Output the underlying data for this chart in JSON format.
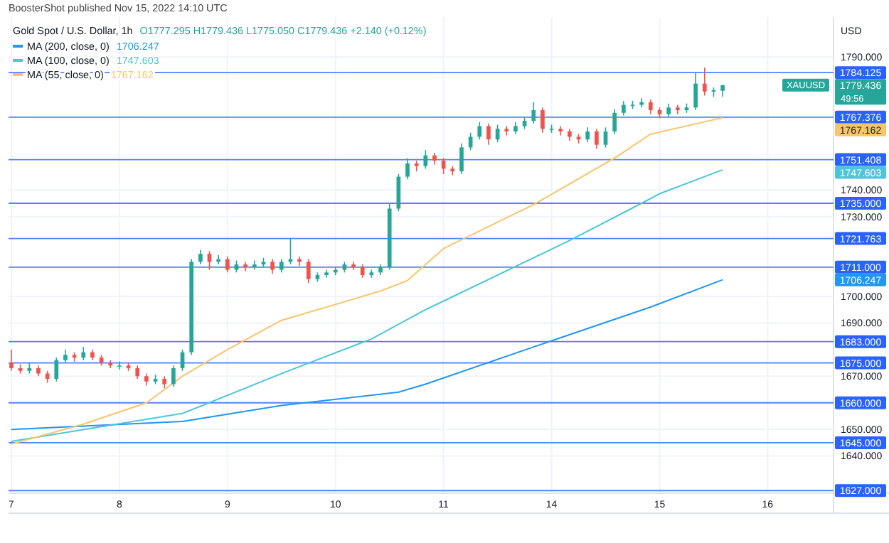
{
  "chart_data": {
    "type": "candlestick",
    "title": "Gold Spot / U.S. Dollar, 1h",
    "subtitle": "O1777.295 H1779.436 L1775.050 C1779.436 +2.140 (+0.12%)",
    "ylabel": "USD",
    "annotations": [
      "BoosterShot published Nov 15, 2022 14:10 UTC",
      "XAUUSD",
      "49:56",
      "1779.436",
      "1706.247",
      "1747.603",
      "1767.162",
      "1706.247",
      "1747.603",
      "1767.162"
    ],
    "ylim": [
      1626,
      1805
    ],
    "yticks": [
      {
        "value": 1790,
        "label": "1790.000"
      },
      {
        "value": 1740,
        "label": "1740.000"
      },
      {
        "value": 1730,
        "label": "1730.000"
      },
      {
        "value": 1700,
        "label": "1700.000"
      },
      {
        "value": 1690,
        "label": "1690.000"
      },
      {
        "value": 1670,
        "label": "1670.000"
      },
      {
        "value": 1650,
        "label": "1650.000"
      },
      {
        "value": 1640,
        "label": "1640.000"
      }
    ],
    "grid": true,
    "legend": "top left",
    "categories": [
      "7",
      null,
      null,
      null,
      null,
      null,
      null,
      null,
      null,
      null,
      null,
      null,
      "8",
      null,
      null,
      null,
      null,
      null,
      null,
      null,
      null,
      null,
      null,
      null,
      "9",
      null,
      null,
      null,
      null,
      null,
      null,
      null,
      null,
      null,
      null,
      null,
      "10",
      null,
      null,
      null,
      null,
      null,
      null,
      null,
      null,
      null,
      null,
      null,
      "11",
      null,
      null,
      null,
      null,
      null,
      null,
      null,
      null,
      null,
      null,
      null,
      "14",
      null,
      null,
      null,
      null,
      null,
      null,
      null,
      null,
      null,
      null,
      null,
      "15",
      null,
      null,
      null,
      null,
      null,
      null,
      null,
      null,
      null,
      null,
      null,
      "16",
      null,
      null,
      null,
      null,
      null,
      null,
      null
    ],
    "ohlc": [
      [
        1675,
        1680,
        1672,
        1673
      ],
      [
        1673,
        1674.5,
        1671,
        1672
      ],
      [
        1672,
        1675,
        1671,
        1673
      ],
      [
        1673,
        1674,
        1670,
        1671
      ],
      [
        1671,
        1672,
        1667.5,
        1669
      ],
      [
        1669,
        1677,
        1668,
        1676
      ],
      [
        1676,
        1680,
        1675,
        1678
      ],
      [
        1678,
        1679,
        1675.5,
        1677
      ],
      [
        1677,
        1681,
        1676,
        1679
      ],
      [
        1679,
        1680,
        1676,
        1677
      ],
      [
        1677,
        1678,
        1674,
        1675
      ],
      [
        1675,
        1676,
        1673,
        1674
      ],
      [
        1674,
        1675.5,
        1672.5,
        1674
      ],
      [
        1674,
        1675,
        1672,
        1673
      ],
      [
        1673,
        1674,
        1669,
        1670
      ],
      [
        1670,
        1671,
        1666.5,
        1668
      ],
      [
        1668,
        1670.5,
        1667,
        1669
      ],
      [
        1669,
        1670,
        1665.5,
        1667
      ],
      [
        1667,
        1674,
        1666,
        1673
      ],
      [
        1673,
        1680,
        1672,
        1679
      ],
      [
        1679,
        1714,
        1678,
        1713
      ],
      [
        1713,
        1717.5,
        1712,
        1716
      ],
      [
        1716,
        1717,
        1710,
        1713
      ],
      [
        1713,
        1715.5,
        1712,
        1714
      ],
      [
        1714,
        1715,
        1709,
        1710
      ],
      [
        1710,
        1713.5,
        1709,
        1712
      ],
      [
        1712,
        1713,
        1709.5,
        1711
      ],
      [
        1711,
        1713.5,
        1710,
        1712
      ],
      [
        1712,
        1714.5,
        1711,
        1713
      ],
      [
        1713,
        1714,
        1708.5,
        1710
      ],
      [
        1710,
        1714,
        1709,
        1713
      ],
      [
        1713,
        1722,
        1712,
        1714
      ],
      [
        1714,
        1715,
        1711.5,
        1713
      ],
      [
        1713,
        1714,
        1705,
        1706.5
      ],
      [
        1706.5,
        1709,
        1705.5,
        1708
      ],
      [
        1708,
        1710,
        1707,
        1709
      ],
      [
        1709,
        1711,
        1708,
        1710
      ],
      [
        1710,
        1713,
        1709,
        1712
      ],
      [
        1712,
        1713,
        1710,
        1711
      ],
      [
        1711,
        1712,
        1707,
        1708
      ],
      [
        1708,
        1710,
        1707,
        1709
      ],
      [
        1709,
        1712,
        1708,
        1711
      ],
      [
        1711,
        1735,
        1710,
        1733
      ],
      [
        1733,
        1746,
        1732,
        1745
      ],
      [
        1745,
        1752,
        1744,
        1750
      ],
      [
        1750,
        1751,
        1747,
        1749
      ],
      [
        1749,
        1755,
        1748,
        1753
      ],
      [
        1753,
        1754,
        1749.5,
        1751
      ],
      [
        1751,
        1752,
        1746,
        1748
      ],
      [
        1748,
        1749,
        1745.5,
        1747
      ],
      [
        1747,
        1757.5,
        1746,
        1756
      ],
      [
        1756,
        1761.5,
        1755,
        1760
      ],
      [
        1760,
        1765.5,
        1759,
        1764
      ],
      [
        1764,
        1765,
        1757,
        1759
      ],
      [
        1759,
        1764.5,
        1758,
        1763
      ],
      [
        1763,
        1764,
        1760.5,
        1762
      ],
      [
        1762,
        1765.5,
        1761,
        1764
      ],
      [
        1764,
        1767.5,
        1763,
        1766
      ],
      [
        1766,
        1773,
        1765,
        1770
      ],
      [
        1770,
        1771,
        1761.5,
        1763
      ],
      [
        1763,
        1764.5,
        1761.5,
        1763
      ],
      [
        1763,
        1764,
        1760.5,
        1762
      ],
      [
        1762,
        1763,
        1758.5,
        1760
      ],
      [
        1760,
        1761,
        1757.5,
        1759
      ],
      [
        1759,
        1763.5,
        1758,
        1762
      ],
      [
        1762,
        1763,
        1755.5,
        1757
      ],
      [
        1757,
        1763.5,
        1756,
        1762
      ],
      [
        1762,
        1770.5,
        1761,
        1769
      ],
      [
        1769,
        1773.5,
        1768,
        1772
      ],
      [
        1772,
        1773.5,
        1770.5,
        1772
      ],
      [
        1772,
        1774.5,
        1771,
        1773
      ],
      [
        1773,
        1774,
        1768.5,
        1770
      ],
      [
        1770,
        1771,
        1767,
        1768.5
      ],
      [
        1768.5,
        1772.5,
        1767.5,
        1771
      ],
      [
        1771,
        1772,
        1768.5,
        1770
      ],
      [
        1770,
        1772.5,
        1769,
        1771
      ],
      [
        1771,
        1784,
        1770,
        1780
      ],
      [
        1780,
        1786,
        1775.5,
        1777
      ],
      [
        1777,
        1778.5,
        1775,
        1777.5
      ],
      [
        1777.295,
        1779.436,
        1775.05,
        1779.436
      ],
      null,
      null,
      null,
      null,
      null,
      null,
      null,
      null,
      null,
      null,
      null,
      null
    ],
    "series": [
      {
        "type": "line",
        "name": "MA (200, close, 0)",
        "color": "#2196f3",
        "values": [
          1650,
          null,
          null,
          null,
          null,
          null,
          null,
          null,
          null,
          null,
          null,
          null,
          null,
          null,
          null,
          null,
          null,
          null,
          null,
          1653,
          null,
          null,
          null,
          null,
          null,
          null,
          null,
          null,
          null,
          null,
          1659,
          null,
          null,
          null,
          null,
          null,
          null,
          null,
          null,
          null,
          null,
          null,
          null,
          1664,
          null,
          null,
          1667,
          null,
          null,
          null,
          null,
          null,
          null,
          null,
          null,
          null,
          null,
          null,
          1681,
          null,
          null,
          null,
          null,
          null,
          null,
          null,
          null,
          null,
          null,
          null,
          null,
          1696,
          null,
          null,
          null,
          null,
          null,
          null,
          null,
          1706.247,
          null,
          null,
          null,
          null,
          null,
          null,
          null,
          null,
          null,
          null,
          null,
          null
        ]
      },
      {
        "type": "line",
        "name": "MA (100, close, 0)",
        "color": "#4dc6dc",
        "values": [
          1645.5,
          null,
          null,
          null,
          null,
          null,
          null,
          null,
          null,
          null,
          null,
          null,
          null,
          null,
          null,
          null,
          null,
          null,
          null,
          1656,
          null,
          null,
          null,
          null,
          null,
          null,
          null,
          null,
          null,
          null,
          1671,
          null,
          null,
          null,
          null,
          null,
          null,
          null,
          null,
          null,
          1684,
          null,
          null,
          null,
          null,
          null,
          1695,
          null,
          null,
          null,
          null,
          null,
          null,
          null,
          null,
          null,
          null,
          null,
          null,
          null,
          null,
          null,
          1721,
          null,
          null,
          null,
          null,
          null,
          null,
          null,
          1735,
          null,
          1738.6,
          null,
          null,
          null,
          null,
          null,
          null,
          1747.603,
          null,
          null,
          null,
          null,
          null,
          null,
          null,
          null,
          null,
          null,
          null,
          null
        ]
      },
      {
        "type": "line",
        "name": "MA (55, close, 0)",
        "color": "#f8c56b",
        "values": [
          1644.5,
          null,
          null,
          null,
          null,
          null,
          null,
          null,
          1652,
          null,
          null,
          null,
          null,
          null,
          null,
          1660,
          null,
          null,
          null,
          1670,
          null,
          null,
          null,
          null,
          1680,
          null,
          null,
          null,
          null,
          null,
          1691,
          null,
          null,
          null,
          null,
          null,
          null,
          null,
          null,
          null,
          null,
          1702,
          null,
          null,
          1706,
          null,
          null,
          null,
          1718,
          null,
          null,
          null,
          null,
          null,
          null,
          null,
          null,
          null,
          1734.5,
          null,
          null,
          null,
          null,
          null,
          null,
          null,
          null,
          1752,
          null,
          null,
          null,
          1761,
          null,
          null,
          null,
          null,
          null,
          null,
          null,
          1767.162,
          null,
          null,
          null,
          null,
          null,
          null,
          null,
          null,
          null,
          null,
          null,
          null
        ]
      }
    ],
    "ref_lines": [
      {
        "axis": "y",
        "value": 1784.125,
        "label": "1784.125",
        "color": "#2962ff"
      },
      {
        "axis": "y",
        "value": 1767.376,
        "label": "1767.376",
        "color": "#2962ff"
      },
      {
        "axis": "y",
        "value": 1751.408,
        "label": "1751.408",
        "color": "#2962ff"
      },
      {
        "axis": "y",
        "value": 1735,
        "label": "1735.000",
        "color": "#2962ff"
      },
      {
        "axis": "y",
        "value": 1721.763,
        "label": "1721.763",
        "color": "#2962ff"
      },
      {
        "axis": "y",
        "value": 1711,
        "label": "1711.000",
        "color": "#2962ff"
      },
      {
        "axis": "y",
        "value": 1683,
        "label": "1683.000",
        "color": "#2962ff"
      },
      {
        "axis": "y",
        "value": 1675,
        "label": "1675.000",
        "color": "#2962ff"
      },
      {
        "axis": "y",
        "value": 1660,
        "label": "1660.000",
        "color": "#2962ff"
      },
      {
        "axis": "y",
        "value": 1645,
        "label": "1645.000",
        "color": "#2962ff"
      },
      {
        "axis": "y",
        "value": 1627,
        "label": "1627.000",
        "color": "#2962ff"
      }
    ]
  }
}
